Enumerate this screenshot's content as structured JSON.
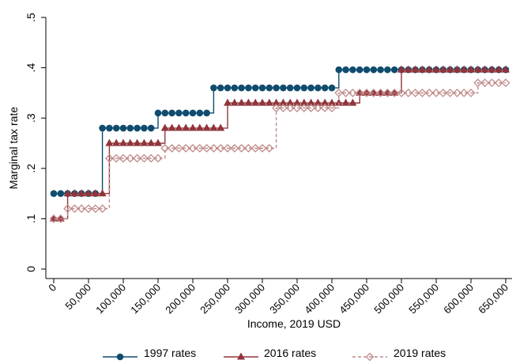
{
  "chart_data": {
    "type": "step",
    "x_label": "Income, 2019 USD",
    "y_label": "Marginal tax rate",
    "x": [
      0,
      10000,
      20000,
      30000,
      40000,
      50000,
      60000,
      70000,
      80000,
      90000,
      100000,
      110000,
      120000,
      130000,
      140000,
      150000,
      160000,
      170000,
      180000,
      190000,
      200000,
      210000,
      220000,
      230000,
      240000,
      250000,
      260000,
      270000,
      280000,
      290000,
      300000,
      310000,
      320000,
      330000,
      340000,
      350000,
      360000,
      370000,
      380000,
      390000,
      400000,
      410000,
      420000,
      430000,
      440000,
      450000,
      460000,
      470000,
      480000,
      490000,
      500000,
      510000,
      520000,
      530000,
      540000,
      550000,
      560000,
      570000,
      580000,
      590000,
      600000,
      610000,
      620000,
      630000,
      640000,
      650000
    ],
    "series": [
      {
        "name": "1997 rates",
        "color": "#0f4c6e",
        "marker": "circle",
        "dashed": false,
        "values": [
          0.15,
          0.15,
          0.15,
          0.15,
          0.15,
          0.15,
          0.15,
          0.28,
          0.28,
          0.28,
          0.28,
          0.28,
          0.28,
          0.28,
          0.28,
          0.31,
          0.31,
          0.31,
          0.31,
          0.31,
          0.31,
          0.31,
          0.31,
          0.36,
          0.36,
          0.36,
          0.36,
          0.36,
          0.36,
          0.36,
          0.36,
          0.36,
          0.36,
          0.36,
          0.36,
          0.36,
          0.36,
          0.36,
          0.36,
          0.36,
          0.36,
          0.396,
          0.396,
          0.396,
          0.396,
          0.396,
          0.396,
          0.396,
          0.396,
          0.396,
          0.396,
          0.396,
          0.396,
          0.396,
          0.396,
          0.396,
          0.396,
          0.396,
          0.396,
          0.396,
          0.396,
          0.396,
          0.396,
          0.396,
          0.396,
          0.396
        ]
      },
      {
        "name": "2016 rates",
        "color": "#90353b",
        "marker": "triangle",
        "dashed": false,
        "values": [
          0.1,
          0.1,
          0.15,
          0.15,
          0.15,
          0.15,
          0.15,
          0.15,
          0.25,
          0.25,
          0.25,
          0.25,
          0.25,
          0.25,
          0.25,
          0.25,
          0.28,
          0.28,
          0.28,
          0.28,
          0.28,
          0.28,
          0.28,
          0.28,
          0.28,
          0.33,
          0.33,
          0.33,
          0.33,
          0.33,
          0.33,
          0.33,
          0.33,
          0.33,
          0.33,
          0.33,
          0.33,
          0.33,
          0.33,
          0.33,
          0.33,
          0.33,
          0.33,
          0.33,
          0.35,
          0.35,
          0.35,
          0.35,
          0.35,
          0.35,
          0.396,
          0.396,
          0.396,
          0.396,
          0.396,
          0.396,
          0.396,
          0.396,
          0.396,
          0.396,
          0.396,
          0.396,
          0.396,
          0.396,
          0.396,
          0.396
        ]
      },
      {
        "name": "2019 rates",
        "color": "#c08a8a",
        "marker": "diamond-hollow",
        "dashed": true,
        "values": [
          0.1,
          0.1,
          0.12,
          0.12,
          0.12,
          0.12,
          0.12,
          0.12,
          0.22,
          0.22,
          0.22,
          0.22,
          0.22,
          0.22,
          0.22,
          0.22,
          0.24,
          0.24,
          0.24,
          0.24,
          0.24,
          0.24,
          0.24,
          0.24,
          0.24,
          0.24,
          0.24,
          0.24,
          0.24,
          0.24,
          0.24,
          0.24,
          0.32,
          0.32,
          0.32,
          0.32,
          0.32,
          0.32,
          0.32,
          0.32,
          0.32,
          0.35,
          0.35,
          0.35,
          0.35,
          0.35,
          0.35,
          0.35,
          0.35,
          0.35,
          0.35,
          0.35,
          0.35,
          0.35,
          0.35,
          0.35,
          0.35,
          0.35,
          0.35,
          0.35,
          0.35,
          0.37,
          0.37,
          0.37,
          0.37,
          0.37
        ]
      }
    ],
    "xlim": [
      0,
      650000
    ],
    "ylim": [
      0,
      0.5
    ],
    "xticks": [
      0,
      {
        "value": 50000,
        "label": "50,000"
      },
      {
        "value": 100000,
        "label": "100,000"
      },
      {
        "value": 150000,
        "label": "150,000"
      },
      {
        "value": 200000,
        "label": "200,000"
      },
      {
        "value": 250000,
        "label": "250,000"
      },
      {
        "value": 300000,
        "label": "300,000"
      },
      {
        "value": 350000,
        "label": "350,000"
      },
      {
        "value": 400000,
        "label": "400,000"
      },
      {
        "value": 450000,
        "label": "450,000"
      },
      {
        "value": 500000,
        "label": "500,000"
      },
      {
        "value": 550000,
        "label": "550,000"
      },
      {
        "value": 600000,
        "label": "600,000"
      },
      {
        "value": 650000,
        "label": "650,000"
      }
    ],
    "yticks": [
      0,
      {
        "value": 0.1,
        "label": ".1"
      },
      {
        "value": 0.2,
        "label": ".2"
      },
      {
        "value": 0.3,
        "label": ".3"
      },
      {
        "value": 0.4,
        "label": ".4"
      },
      {
        "value": 0.5,
        "label": ".5"
      }
    ],
    "grid": false,
    "legend": "bottom"
  }
}
